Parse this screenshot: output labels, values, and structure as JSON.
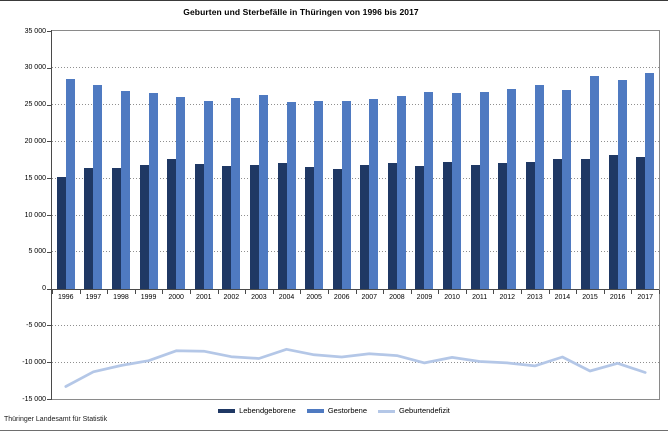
{
  "page": {
    "title": "Geburten und Sterbefälle in Thüringen von 1996 bis 2017",
    "source": "Thüringer Landesamt für Statistik"
  },
  "legend": {
    "position": "bottom",
    "items": [
      {
        "label": "Lebendgeborene",
        "color": "#1F3864",
        "swatch": "bar"
      },
      {
        "label": "Gestorbene",
        "color": "#4F7AC1",
        "swatch": "bar"
      },
      {
        "label": "Geburtendefizit",
        "color": "#B4C7E7",
        "swatch": "line"
      }
    ]
  },
  "chart_data": {
    "type": "bar",
    "title": "Geburten und Sterbefälle in Thüringen von 1996 bis 2017",
    "xlabel": "",
    "ylabel": "",
    "ylim": [
      -15000,
      35000
    ],
    "ytick_step": 5000,
    "grid": "horizontal-dotted",
    "legend_position": "bottom",
    "source": "Thüringer Landesamt für Statistik",
    "yticks": [
      {
        "value": 35000,
        "label": "35 000"
      },
      {
        "value": 30000,
        "label": "30 000"
      },
      {
        "value": 25000,
        "label": "25 000"
      },
      {
        "value": 20000,
        "label": "20 000"
      },
      {
        "value": 15000,
        "label": "15 000"
      },
      {
        "value": 10000,
        "label": "10 000"
      },
      {
        "value": 5000,
        "label": "5 000"
      },
      {
        "value": 0,
        "label": "0"
      },
      {
        "value": -5000,
        "label": "-5 000"
      },
      {
        "value": -10000,
        "label": "-10 000"
      },
      {
        "value": -15000,
        "label": "-15 000"
      }
    ],
    "categories": [
      "1996",
      "1997",
      "1998",
      "1999",
      "2000",
      "2001",
      "2002",
      "2003",
      "2004",
      "2005",
      "2006",
      "2007",
      "2008",
      "2009",
      "2010",
      "2011",
      "2012",
      "2013",
      "2014",
      "2015",
      "2016",
      "2017"
    ],
    "series": [
      {
        "name": "Lebendgeborene",
        "type": "bar",
        "color": "#1F3864",
        "values": [
          15150,
          16350,
          16450,
          16750,
          17550,
          16950,
          16700,
          16800,
          17050,
          16500,
          16200,
          16850,
          17100,
          16600,
          17250,
          16750,
          17050,
          17150,
          17650,
          17650,
          18150,
          17900
        ]
      },
      {
        "name": "Gestorbene",
        "type": "bar",
        "color": "#4F7AC1",
        "values": [
          28450,
          27650,
          26900,
          26550,
          26000,
          25450,
          25950,
          26300,
          25300,
          25500,
          25500,
          25700,
          26200,
          26700,
          26600,
          26650,
          27150,
          27650,
          26950,
          28850,
          28300,
          29300
        ]
      },
      {
        "name": "Geburtendefizit",
        "type": "line",
        "color": "#B4C7E7",
        "values": [
          -13300,
          -11300,
          -10450,
          -9800,
          -8450,
          -8500,
          -9250,
          -9500,
          -8250,
          -9000,
          -9300,
          -8850,
          -9100,
          -10100,
          -9350,
          -9900,
          -10100,
          -10500,
          -9300,
          -11200,
          -10150,
          -11400
        ]
      }
    ]
  }
}
